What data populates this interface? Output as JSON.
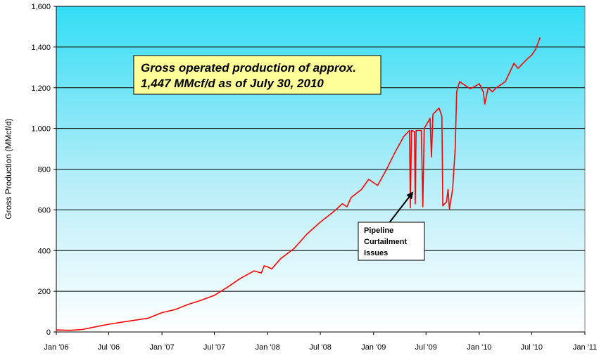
{
  "chart_data": {
    "type": "line",
    "title": "",
    "xlabel": "",
    "ylabel": "Gross Production (MMcf/d)",
    "xlim": [
      "2006-01-01",
      "2011-01-01"
    ],
    "ylim": [
      0,
      1600
    ],
    "x_ticks": [
      {
        "date": "2006-01-01",
        "label": "Jan '06"
      },
      {
        "date": "2006-07-01",
        "label": "Jul '06"
      },
      {
        "date": "2007-01-01",
        "label": "Jan '07"
      },
      {
        "date": "2007-07-01",
        "label": "Jul '07"
      },
      {
        "date": "2008-01-01",
        "label": "Jan '08"
      },
      {
        "date": "2008-07-01",
        "label": "Jul '08"
      },
      {
        "date": "2009-01-01",
        "label": "Jan '09"
      },
      {
        "date": "2009-07-01",
        "label": "Jul '09"
      },
      {
        "date": "2010-01-01",
        "label": "Jan '10"
      },
      {
        "date": "2010-07-01",
        "label": "Jul '10"
      },
      {
        "date": "2011-01-01",
        "label": "Jan '11"
      }
    ],
    "y_ticks": [
      {
        "value": 0,
        "label": "0"
      },
      {
        "value": 200,
        "label": "200"
      },
      {
        "value": 400,
        "label": "400"
      },
      {
        "value": 600,
        "label": "600"
      },
      {
        "value": 800,
        "label": "800"
      },
      {
        "value": 1000,
        "label": "1,000"
      },
      {
        "value": 1200,
        "label": "1,200"
      },
      {
        "value": 1400,
        "label": "1,400"
      },
      {
        "value": 1600,
        "label": "1,600"
      }
    ],
    "grid": "horizontal",
    "series": [
      {
        "color": "#ff0000",
        "points": [
          [
            "2006-01-01",
            10
          ],
          [
            "2006-02-15",
            8
          ],
          [
            "2006-04-01",
            12
          ],
          [
            "2006-05-15",
            25
          ],
          [
            "2006-07-01",
            38
          ],
          [
            "2006-08-15",
            48
          ],
          [
            "2006-10-01",
            58
          ],
          [
            "2006-11-15",
            68
          ],
          [
            "2007-01-01",
            95
          ],
          [
            "2007-02-15",
            110
          ],
          [
            "2007-04-01",
            135
          ],
          [
            "2007-05-15",
            155
          ],
          [
            "2007-07-01",
            180
          ],
          [
            "2007-08-15",
            220
          ],
          [
            "2007-10-01",
            265
          ],
          [
            "2007-11-15",
            300
          ],
          [
            "2007-12-10",
            290
          ],
          [
            "2007-12-20",
            325
          ],
          [
            "2008-01-01",
            320
          ],
          [
            "2008-01-15",
            310
          ],
          [
            "2008-02-15",
            360
          ],
          [
            "2008-04-01",
            410
          ],
          [
            "2008-05-15",
            480
          ],
          [
            "2008-07-01",
            540
          ],
          [
            "2008-08-15",
            590
          ],
          [
            "2008-09-15",
            630
          ],
          [
            "2008-10-01",
            615
          ],
          [
            "2008-10-15",
            660
          ],
          [
            "2008-11-20",
            700
          ],
          [
            "2008-12-15",
            750
          ],
          [
            "2009-01-15",
            720
          ],
          [
            "2009-02-15",
            800
          ],
          [
            "2009-03-15",
            880
          ],
          [
            "2009-04-15",
            960
          ],
          [
            "2009-05-05",
            990
          ],
          [
            "2009-05-08",
            610
          ],
          [
            "2009-05-12",
            990
          ],
          [
            "2009-05-22",
            985
          ],
          [
            "2009-05-25",
            630
          ],
          [
            "2009-05-28",
            990
          ],
          [
            "2009-06-15",
            990
          ],
          [
            "2009-06-20",
            615
          ],
          [
            "2009-06-25",
            1000
          ],
          [
            "2009-07-15",
            1050
          ],
          [
            "2009-07-20",
            860
          ],
          [
            "2009-07-25",
            1070
          ],
          [
            "2009-08-15",
            1100
          ],
          [
            "2009-08-25",
            1060
          ],
          [
            "2009-08-28",
            620
          ],
          [
            "2009-09-10",
            640
          ],
          [
            "2009-09-15",
            700
          ],
          [
            "2009-09-20",
            605
          ],
          [
            "2009-10-01",
            700
          ],
          [
            "2009-10-10",
            900
          ],
          [
            "2009-10-15",
            1180
          ],
          [
            "2009-10-25",
            1230
          ],
          [
            "2009-11-15",
            1210
          ],
          [
            "2009-12-01",
            1195
          ],
          [
            "2009-12-15",
            1205
          ],
          [
            "2010-01-01",
            1220
          ],
          [
            "2010-01-15",
            1180
          ],
          [
            "2010-01-20",
            1120
          ],
          [
            "2010-02-01",
            1200
          ],
          [
            "2010-02-15",
            1180
          ],
          [
            "2010-03-01",
            1200
          ],
          [
            "2010-04-01",
            1230
          ],
          [
            "2010-05-01",
            1320
          ],
          [
            "2010-05-15",
            1295
          ],
          [
            "2010-06-01",
            1320
          ],
          [
            "2010-06-15",
            1340
          ],
          [
            "2010-07-01",
            1360
          ],
          [
            "2010-07-15",
            1390
          ],
          [
            "2010-07-30",
            1447
          ]
        ]
      }
    ],
    "annotations": [
      {
        "id": "callout",
        "lines": [
          "Gross operated production of approx.",
          "1,447 MMcf/d as of July 30, 2010"
        ]
      },
      {
        "id": "pipeline",
        "lines": [
          "Pipeline",
          "Curtailment",
          "Issues"
        ]
      }
    ]
  }
}
